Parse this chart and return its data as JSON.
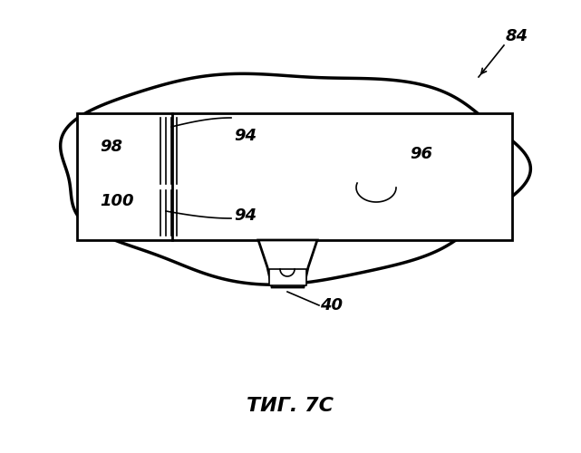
{
  "bg_color": "#ffffff",
  "line_color": "#000000",
  "title": "ΤИГ. 7C",
  "label_84": "84",
  "label_40": "40",
  "label_94a": "94",
  "label_94b": "94",
  "label_96": "96",
  "label_98": "98",
  "label_100": "100",
  "fig_width": 6.41,
  "fig_height": 5.0,
  "dpi": 100
}
